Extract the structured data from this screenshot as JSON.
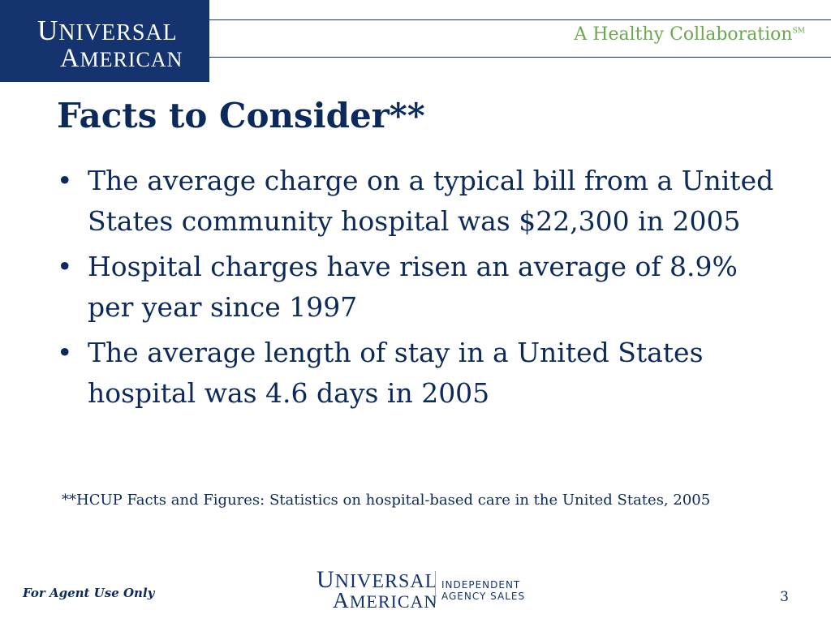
{
  "header": {
    "logo_line1_initial": "U",
    "logo_line1_rest": "NIVERSAL",
    "logo_line2_initial": "A",
    "logo_line2_rest": "MERICAN",
    "tagline": "A Healthy Collaboration",
    "tagline_mark": "SM"
  },
  "slide": {
    "title": "Facts to Consider**",
    "bullets": [
      "The average charge on a typical bill from a United States community hospital was $22,300 in 2005",
      "Hospital charges have risen an average of 8.9% per year since 1997",
      "The average length of stay in a United States hospital was 4.6 days in 2005"
    ],
    "bullet_symbol": "•",
    "footnote": "**HCUP Facts and Figures:  Statistics on hospital-based care in the United States, 2005"
  },
  "footer": {
    "agent_note": "For Agent Use Only",
    "logo_line1_initial": "U",
    "logo_line1_rest": "NIVERSAL",
    "logo_line2_initial": "A",
    "logo_line2_rest": "MERICAN",
    "division_line1": "INDEPENDENT",
    "division_line2": "AGENCY SALES",
    "page_number": "3"
  },
  "colors": {
    "navy": "#14336f",
    "text": "#0b2a5b",
    "green": "#6aa84f",
    "star_red": "#c0392b"
  }
}
